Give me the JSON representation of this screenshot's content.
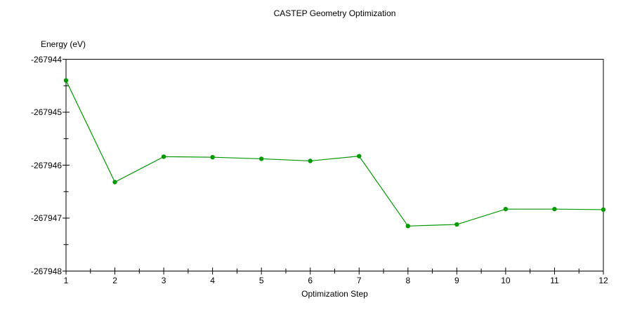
{
  "window": {
    "background": "#ffffff"
  },
  "chart_data": {
    "type": "line",
    "title": "CASTEP Geometry Optimization",
    "xlabel": "Optimization Step",
    "ylabel": "Energy (eV)",
    "x": [
      1,
      2,
      3,
      4,
      5,
      6,
      7,
      8,
      9,
      10,
      11,
      12
    ],
    "y": [
      -267944.4,
      -267946.32,
      -267945.84,
      -267945.85,
      -267945.88,
      -267945.92,
      -267945.83,
      -267947.15,
      -267947.12,
      -267946.83,
      -267946.83,
      -267946.84
    ],
    "xlim": [
      1,
      12
    ],
    "ylim": [
      -267948,
      -267944
    ],
    "x_major_ticks": [
      1,
      2,
      3,
      4,
      5,
      6,
      7,
      8,
      9,
      10,
      11,
      12
    ],
    "y_major_ticks": [
      -267944,
      -267945,
      -267946,
      -267947,
      -267948
    ],
    "x_minor_step": 0.5,
    "y_minor_step": 0.5,
    "grid": false,
    "legend": null,
    "series": [
      {
        "name": "Energy",
        "color": "#009900",
        "marker": "circle"
      }
    ],
    "axis_color": "#000000",
    "text_color": "#000000",
    "background": "#ffffff"
  }
}
